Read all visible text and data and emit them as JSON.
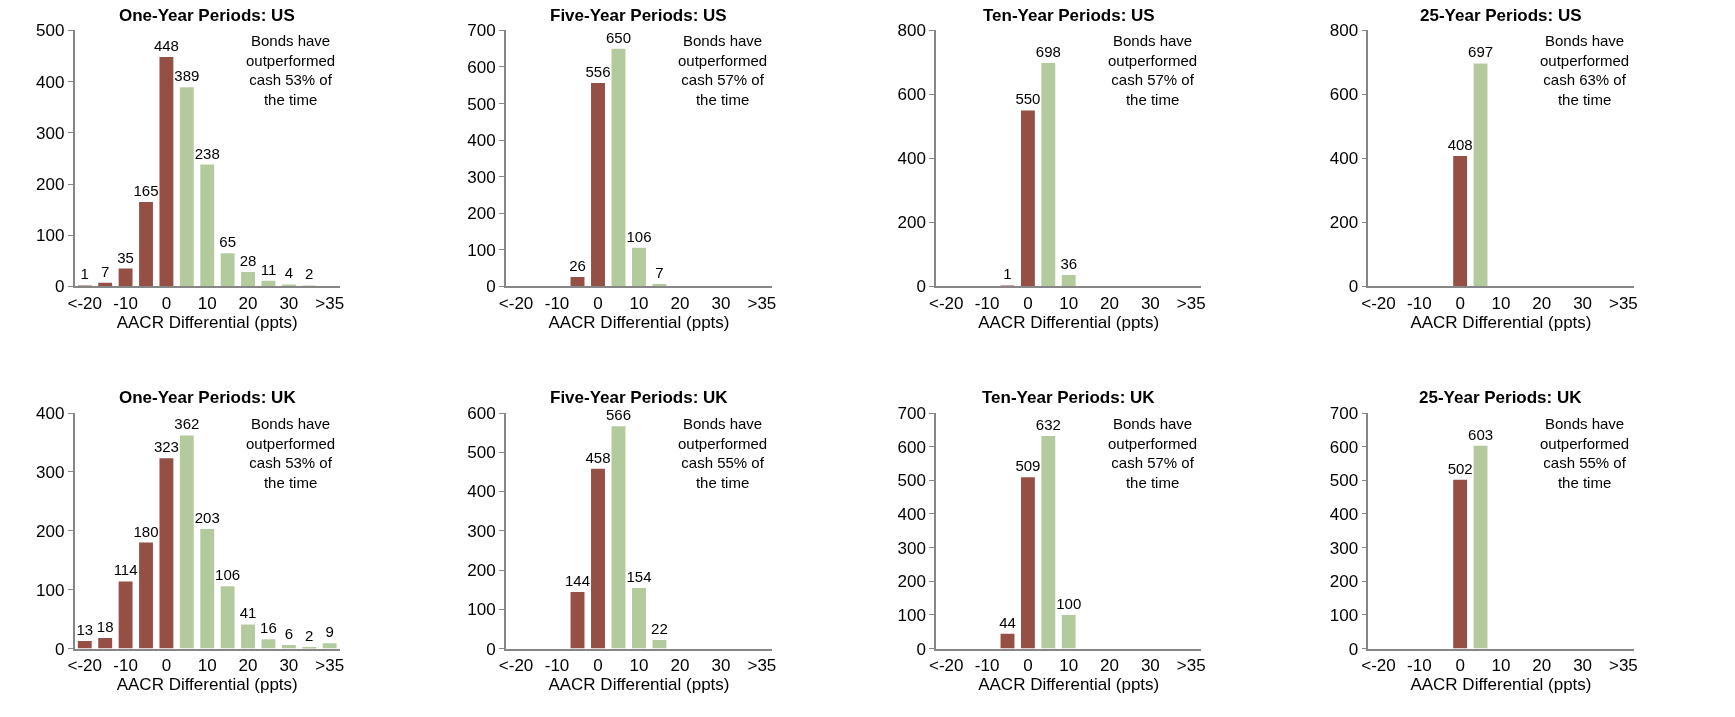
{
  "chart_data": [
    {
      "type": "bar",
      "title": "One-Year Periods: US",
      "xlabel": "AACR Differential (ppts)",
      "categories": [
        "<-20",
        null,
        "-10",
        null,
        "0",
        null,
        "10",
        null,
        "20",
        null,
        "30",
        null,
        ">35"
      ],
      "values": [
        1,
        7,
        35,
        165,
        448,
        389,
        238,
        65,
        28,
        11,
        4,
        2,
        0
      ],
      "value_labels": [
        "1",
        "7",
        "35",
        "165",
        "448",
        "389",
        "238",
        "65",
        "28",
        "11",
        "4",
        "2",
        null
      ],
      "colors": [
        "#954f45",
        "#954f45",
        "#954f45",
        "#954f45",
        "#954f45",
        "#b3cb9c",
        "#b3cb9c",
        "#b3cb9c",
        "#b3cb9c",
        "#b3cb9c",
        "#b3cb9c",
        "#b3cb9c",
        "#b3cb9c"
      ],
      "ylim": [
        0,
        500
      ],
      "yticks": [
        0,
        100,
        200,
        300,
        400,
        500
      ],
      "annotations": [
        "Bonds have\noutperformed\ncash 53% of\nthe time"
      ]
    },
    {
      "type": "bar",
      "title": "Five-Year Periods: US",
      "xlabel": "AACR Differential (ppts)",
      "categories": [
        "<-20",
        null,
        "-10",
        null,
        "0",
        null,
        "10",
        null,
        "20",
        null,
        "30",
        null,
        ">35"
      ],
      "values": [
        0,
        0,
        0,
        26,
        556,
        650,
        106,
        7,
        0,
        0,
        0,
        0,
        0
      ],
      "value_labels": [
        null,
        null,
        null,
        "26",
        "556",
        "650",
        "106",
        "7",
        null,
        null,
        null,
        null,
        null
      ],
      "colors": [
        "#954f45",
        "#954f45",
        "#954f45",
        "#954f45",
        "#954f45",
        "#b3cb9c",
        "#b3cb9c",
        "#b3cb9c",
        "#b3cb9c",
        "#b3cb9c",
        "#b3cb9c",
        "#b3cb9c",
        "#b3cb9c"
      ],
      "ylim": [
        0,
        700
      ],
      "yticks": [
        0,
        100,
        200,
        300,
        400,
        500,
        600,
        700
      ],
      "annotations": [
        "Bonds have\noutperformed\ncash 57% of\nthe time"
      ]
    },
    {
      "type": "bar",
      "title": "Ten-Year Periods: US",
      "xlabel": "AACR Differential (ppts)",
      "categories": [
        "<-20",
        null,
        "-10",
        null,
        "0",
        null,
        "10",
        null,
        "20",
        null,
        "30",
        null,
        ">35"
      ],
      "values": [
        0,
        0,
        0,
        1,
        550,
        698,
        36,
        0,
        0,
        0,
        0,
        0,
        0
      ],
      "value_labels": [
        null,
        null,
        null,
        "1",
        "550",
        "698",
        "36",
        null,
        null,
        null,
        null,
        null,
        null
      ],
      "colors": [
        "#954f45",
        "#954f45",
        "#954f45",
        "#954f45",
        "#954f45",
        "#b3cb9c",
        "#b3cb9c",
        "#b3cb9c",
        "#b3cb9c",
        "#b3cb9c",
        "#b3cb9c",
        "#b3cb9c",
        "#b3cb9c"
      ],
      "ylim": [
        0,
        800
      ],
      "yticks": [
        0,
        200,
        400,
        600,
        800
      ],
      "annotations": [
        "Bonds have\noutperformed\ncash 57% of\nthe time"
      ]
    },
    {
      "type": "bar",
      "title": "25-Year Periods: US",
      "xlabel": "AACR Differential (ppts)",
      "categories": [
        "<-20",
        null,
        "-10",
        null,
        "0",
        null,
        "10",
        null,
        "20",
        null,
        "30",
        null,
        ">35"
      ],
      "values": [
        0,
        0,
        0,
        0,
        408,
        697,
        0,
        0,
        0,
        0,
        0,
        0,
        0
      ],
      "value_labels": [
        null,
        null,
        null,
        null,
        "408",
        "697",
        null,
        null,
        null,
        null,
        null,
        null,
        null
      ],
      "colors": [
        "#954f45",
        "#954f45",
        "#954f45",
        "#954f45",
        "#954f45",
        "#b3cb9c",
        "#b3cb9c",
        "#b3cb9c",
        "#b3cb9c",
        "#b3cb9c",
        "#b3cb9c",
        "#b3cb9c",
        "#b3cb9c"
      ],
      "ylim": [
        0,
        800
      ],
      "yticks": [
        0,
        200,
        400,
        600,
        800
      ],
      "annotations": [
        "Bonds have\noutperformed\ncash 63% of\nthe time"
      ]
    },
    {
      "type": "bar",
      "title": "One-Year Periods: UK",
      "xlabel": "AACR Differential (ppts)",
      "categories": [
        "<-20",
        null,
        "-10",
        null,
        "0",
        null,
        "10",
        null,
        "20",
        null,
        "30",
        null,
        ">35"
      ],
      "values": [
        13,
        18,
        114,
        180,
        323,
        362,
        203,
        106,
        41,
        16,
        6,
        2,
        9
      ],
      "value_labels": [
        "13",
        "18",
        "114",
        "180",
        "323",
        "362",
        "203",
        "106",
        "41",
        "16",
        "6",
        "2",
        "9"
      ],
      "colors": [
        "#954f45",
        "#954f45",
        "#954f45",
        "#954f45",
        "#954f45",
        "#b3cb9c",
        "#b3cb9c",
        "#b3cb9c",
        "#b3cb9c",
        "#b3cb9c",
        "#b3cb9c",
        "#b3cb9c",
        "#b3cb9c"
      ],
      "ylim": [
        0,
        400
      ],
      "yticks": [
        0,
        100,
        200,
        300,
        400
      ],
      "annotations": [
        "Bonds have\noutperformed\ncash 53% of\nthe time"
      ]
    },
    {
      "type": "bar",
      "title": "Five-Year Periods: UK",
      "xlabel": "AACR Differential (ppts)",
      "categories": [
        "<-20",
        null,
        "-10",
        null,
        "0",
        null,
        "10",
        null,
        "20",
        null,
        "30",
        null,
        ">35"
      ],
      "values": [
        0,
        0,
        0,
        144,
        458,
        566,
        154,
        22,
        0,
        0,
        0,
        0,
        0
      ],
      "value_labels": [
        null,
        null,
        null,
        "144",
        "458",
        "566",
        "154",
        "22",
        null,
        null,
        null,
        null,
        null
      ],
      "colors": [
        "#954f45",
        "#954f45",
        "#954f45",
        "#954f45",
        "#954f45",
        "#b3cb9c",
        "#b3cb9c",
        "#b3cb9c",
        "#b3cb9c",
        "#b3cb9c",
        "#b3cb9c",
        "#b3cb9c",
        "#b3cb9c"
      ],
      "ylim": [
        0,
        600
      ],
      "yticks": [
        0,
        100,
        200,
        300,
        400,
        500,
        600
      ],
      "annotations": [
        "Bonds have\noutperformed\ncash 55% of\nthe time"
      ]
    },
    {
      "type": "bar",
      "title": "Ten-Year Periods: UK",
      "xlabel": "AACR Differential (ppts)",
      "categories": [
        "<-20",
        null,
        "-10",
        null,
        "0",
        null,
        "10",
        null,
        "20",
        null,
        "30",
        null,
        ">35"
      ],
      "values": [
        0,
        0,
        0,
        44,
        509,
        632,
        100,
        0,
        0,
        0,
        0,
        0,
        0
      ],
      "value_labels": [
        null,
        null,
        null,
        "44",
        "509",
        "632",
        "100",
        null,
        null,
        null,
        null,
        null,
        null
      ],
      "colors": [
        "#954f45",
        "#954f45",
        "#954f45",
        "#954f45",
        "#954f45",
        "#b3cb9c",
        "#b3cb9c",
        "#b3cb9c",
        "#b3cb9c",
        "#b3cb9c",
        "#b3cb9c",
        "#b3cb9c",
        "#b3cb9c"
      ],
      "ylim": [
        0,
        700
      ],
      "yticks": [
        0,
        100,
        200,
        300,
        400,
        500,
        600,
        700
      ],
      "annotations": [
        "Bonds have\noutperformed\ncash 57% of\nthe time"
      ]
    },
    {
      "type": "bar",
      "title": "25-Year Periods: UK",
      "xlabel": "AACR Differential (ppts)",
      "categories": [
        "<-20",
        null,
        "-10",
        null,
        "0",
        null,
        "10",
        null,
        "20",
        null,
        "30",
        null,
        ">35"
      ],
      "values": [
        0,
        0,
        0,
        0,
        502,
        603,
        0,
        0,
        0,
        0,
        0,
        0,
        0
      ],
      "value_labels": [
        null,
        null,
        null,
        null,
        "502",
        "603",
        null,
        null,
        null,
        null,
        null,
        null,
        null
      ],
      "colors": [
        "#954f45",
        "#954f45",
        "#954f45",
        "#954f45",
        "#954f45",
        "#b3cb9c",
        "#b3cb9c",
        "#b3cb9c",
        "#b3cb9c",
        "#b3cb9c",
        "#b3cb9c",
        "#b3cb9c",
        "#b3cb9c"
      ],
      "ylim": [
        0,
        700
      ],
      "yticks": [
        0,
        100,
        200,
        300,
        400,
        500,
        600,
        700
      ],
      "annotations": [
        "Bonds have\noutperformed\ncash 55% of\nthe time"
      ]
    }
  ]
}
